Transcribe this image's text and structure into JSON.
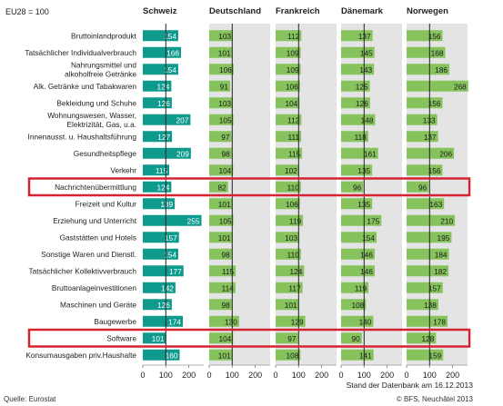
{
  "index_note": "EU28 = 100",
  "source": "Quelle: Eurostat",
  "date_note": "Stand der Datenbank am 16.12.2013",
  "copyright": "© BFS, Neuchâtel 2013",
  "colors": {
    "schweiz": "#0f9a8e",
    "others": "#86c35c",
    "highlight": "#d42431",
    "panel_bg": "#e4e4e4",
    "axis_line": "#222222"
  },
  "chart_data": {
    "type": "bar",
    "orientation": "horizontal",
    "title": "",
    "xlabel": "",
    "ylabel": "",
    "xlim": [
      0,
      260
    ],
    "xticks": [
      0,
      100,
      200
    ],
    "reference_line": 100,
    "grid": false,
    "legend": "none",
    "highlighted_categories": [
      "Nachrichtenübermittlung",
      "Software"
    ],
    "categories": [
      "Bruttoinlandprodukt",
      "Tatsächlicher Individualverbrauch",
      "Nahrungsmittel und alkoholfreie Getränke",
      "Alk. Getränke und Tabakwaren",
      "Bekleidung und Schuhe",
      "Wohnungswesen, Wasser, Elektrizität, Gas, u.a.",
      "Innenausst. u. Haushaltsführung",
      "Gesundheitspflege",
      "Verkehr",
      "Nachrichtenübermittlung",
      "Freizeit und Kultur",
      "Erziehung und Unterricht",
      "Gaststätten und Hotels",
      "Sonstige Waren und Dienstl.",
      "Tatsächlicher Kollektivverbrauch",
      "Bruttoanlageinvestitionen",
      "Maschinen und Geräte",
      "Baugewerbe",
      "Software",
      "Konsumausgaben priv.Haushalte"
    ],
    "category_lines": [
      [
        "Bruttoinlandprodukt"
      ],
      [
        "Tatsächlicher Individualverbrauch"
      ],
      [
        "Nahrungsmittel und",
        "alkoholfreie Getränke"
      ],
      [
        "Alk. Getränke und Tabakwaren"
      ],
      [
        "Bekleidung und Schuhe"
      ],
      [
        "Wohnungswesen, Wasser,",
        "Elektrizität, Gas, u.a."
      ],
      [
        "Innenausst. u. Haushaltsführung"
      ],
      [
        "Gesundheitspflege"
      ],
      [
        "Verkehr"
      ],
      [
        "Nachrichtenübermittlung"
      ],
      [
        "Freizeit und Kultur"
      ],
      [
        "Erziehung und Unterricht"
      ],
      [
        "Gaststätten und Hotels"
      ],
      [
        "Sonstige Waren und Dienstl."
      ],
      [
        "Tatsächlicher Kollektivverbrauch"
      ],
      [
        "Bruttoanlageinvestitionen"
      ],
      [
        "Maschinen und Geräte"
      ],
      [
        "Baugewerbe"
      ],
      [
        "Software"
      ],
      [
        "Konsumausgaben priv.Haushalte"
      ]
    ],
    "series": [
      {
        "name": "Schweiz",
        "values": [
          154,
          166,
          154,
          124,
          126,
          207,
          127,
          209,
          115,
          124,
          139,
          255,
          157,
          154,
          177,
          142,
          126,
          174,
          101,
          160
        ]
      },
      {
        "name": "Deutschland",
        "values": [
          103,
          101,
          106,
          91,
          103,
          105,
          97,
          98,
          104,
          82,
          101,
          105,
          101,
          98,
          115,
          114,
          98,
          130,
          104,
          101
        ]
      },
      {
        "name": "Frankreich",
        "values": [
          112,
          109,
          109,
          106,
          104,
          112,
          111,
          115,
          102,
          110,
          106,
          119,
          103,
          110,
          124,
          117,
          101,
          129,
          97,
          108
        ]
      },
      {
        "name": "Dänemark",
        "values": [
          137,
          145,
          143,
          125,
          126,
          148,
          118,
          161,
          135,
          96,
          135,
          175,
          154,
          146,
          146,
          119,
          108,
          140,
          90,
          141
        ]
      },
      {
        "name": "Norwegen",
        "values": [
          156,
          168,
          186,
          268,
          156,
          133,
          137,
          206,
          156,
          96,
          163,
          210,
          195,
          184,
          182,
          157,
          138,
          178,
          128,
          159
        ]
      }
    ]
  }
}
